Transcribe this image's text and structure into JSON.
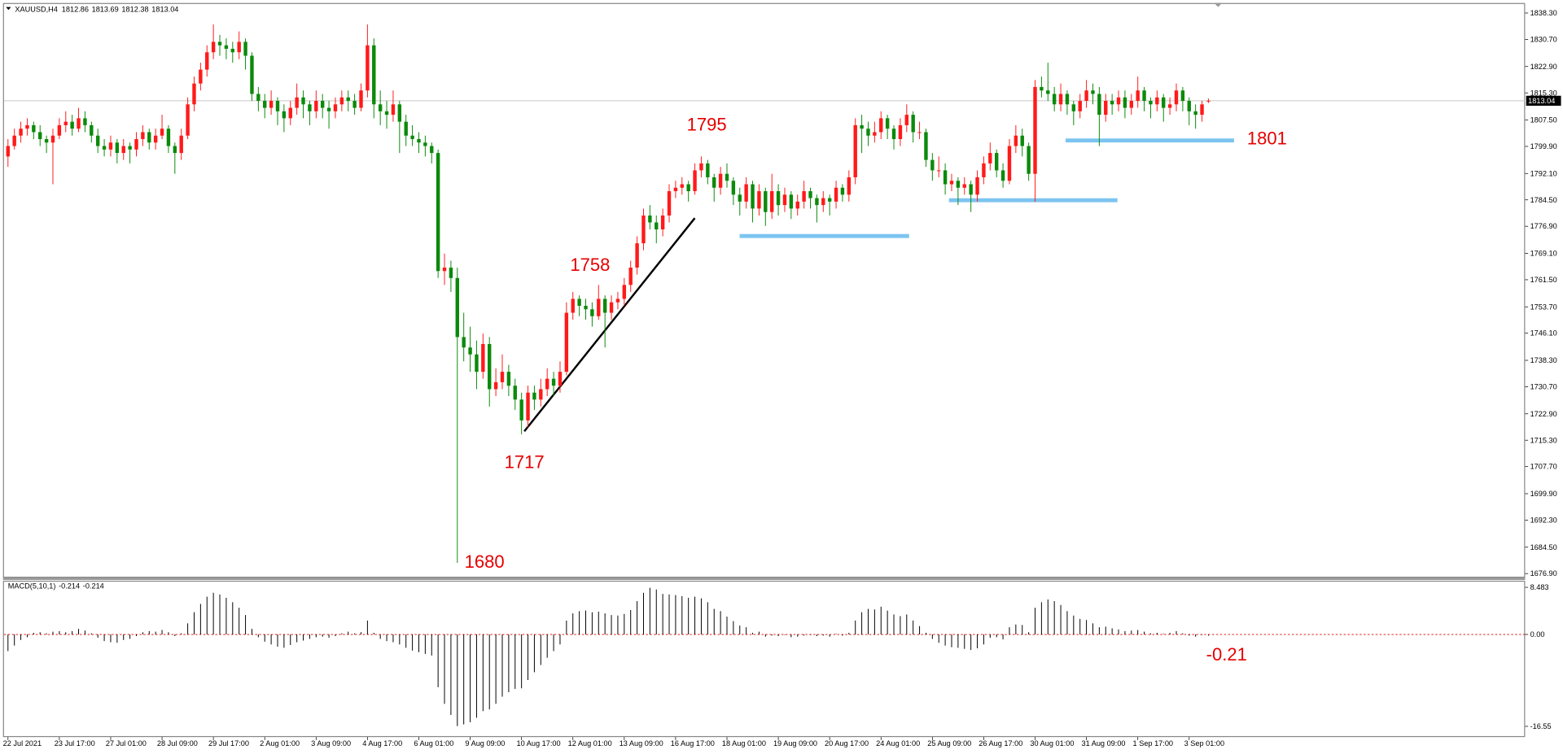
{
  "chart_data": {
    "type": "candlestick",
    "title": "XAUUSD,H4",
    "up_color": "#ff1a1a",
    "down_color": "#0b8a0b",
    "ylim": [
      1676.0,
      1840.9
    ],
    "yticks": [
      {
        "value": 1838.3,
        "label": "1838.30"
      },
      {
        "value": 1830.7,
        "label": "1830.70"
      },
      {
        "value": 1822.9,
        "label": "1822.90"
      },
      {
        "value": 1815.3,
        "label": "1815.30"
      },
      {
        "value": 1807.5,
        "label": "1807.50"
      },
      {
        "value": 1799.9,
        "label": "1799.90"
      },
      {
        "value": 1792.1,
        "label": "1792.10"
      },
      {
        "value": 1784.5,
        "label": "1784.50"
      },
      {
        "value": 1776.9,
        "label": "1776.90"
      },
      {
        "value": 1769.1,
        "label": "1769.10"
      },
      {
        "value": 1761.5,
        "label": "1761.50"
      },
      {
        "value": 1753.7,
        "label": "1753.70"
      },
      {
        "value": 1746.1,
        "label": "1746.10"
      },
      {
        "value": 1738.3,
        "label": "1738.30"
      },
      {
        "value": 1730.7,
        "label": "1730.70"
      },
      {
        "value": 1722.9,
        "label": "1722.90"
      },
      {
        "value": 1715.3,
        "label": "1715.30"
      },
      {
        "value": 1707.7,
        "label": "1707.70"
      },
      {
        "value": 1699.9,
        "label": "1699.90"
      },
      {
        "value": 1692.3,
        "label": "1692.30"
      },
      {
        "value": 1684.5,
        "label": "1684.50"
      },
      {
        "value": 1676.9,
        "label": "1676.90"
      }
    ],
    "time_labels": [
      "22 Jul 2021",
      "23 Jul 17:00",
      "27 Jul 01:00",
      "28 Jul 09:00",
      "29 Jul 17:00",
      "2 Aug 01:00",
      "3 Aug 09:00",
      "4 Aug 17:00",
      "6 Aug 01:00",
      "9 Aug 09:00",
      "10 Aug 17:00",
      "12 Aug 01:00",
      "13 Aug 09:00",
      "16 Aug 17:00",
      "18 Aug 01:00",
      "19 Aug 09:00",
      "20 Aug 17:00",
      "24 Aug 01:00",
      "25 Aug 09:00",
      "26 Aug 17:00",
      "30 Aug 01:00",
      "31 Aug 09:00",
      "1 Sep 17:00",
      "3 Sep 01:00"
    ],
    "annotations": [
      1795,
      1758,
      1717,
      1680,
      1801,
      -0.21
    ],
    "candles": [
      [
        1797,
        1802,
        1794,
        1800
      ],
      [
        1800,
        1805,
        1799,
        1803
      ],
      [
        1803,
        1807,
        1801,
        1805
      ],
      [
        1805,
        1808,
        1803,
        1806
      ],
      [
        1806,
        1807,
        1802,
        1804
      ],
      [
        1804,
        1806,
        1800,
        1802
      ],
      [
        1802,
        1803,
        1798,
        1801
      ],
      [
        1801,
        1805,
        1789,
        1803
      ],
      [
        1803,
        1808,
        1802,
        1806
      ],
      [
        1806,
        1810,
        1804,
        1807
      ],
      [
        1807,
        1809,
        1803,
        1805
      ],
      [
        1805,
        1811,
        1804,
        1808
      ],
      [
        1808,
        1810,
        1804,
        1806
      ],
      [
        1806,
        1807,
        1801,
        1803
      ],
      [
        1803,
        1805,
        1798,
        1800
      ],
      [
        1800,
        1802,
        1797,
        1799
      ],
      [
        1799,
        1803,
        1797,
        1801
      ],
      [
        1801,
        1802,
        1795,
        1798
      ],
      [
        1798,
        1802,
        1796,
        1800
      ],
      [
        1800,
        1801,
        1795,
        1799
      ],
      [
        1799,
        1804,
        1797,
        1802
      ],
      [
        1802,
        1806,
        1800,
        1804
      ],
      [
        1804,
        1805,
        1799,
        1801
      ],
      [
        1801,
        1805,
        1799,
        1803
      ],
      [
        1803,
        1809,
        1802,
        1805
      ],
      [
        1805,
        1806,
        1798,
        1800
      ],
      [
        1800,
        1801,
        1792,
        1798
      ],
      [
        1798,
        1805,
        1796,
        1803
      ],
      [
        1803,
        1814,
        1802,
        1812
      ],
      [
        1812,
        1820,
        1810,
        1818
      ],
      [
        1818,
        1824,
        1816,
        1822
      ],
      [
        1822,
        1829,
        1820,
        1827
      ],
      [
        1827,
        1835,
        1825,
        1830
      ],
      [
        1830,
        1832,
        1826,
        1829
      ],
      [
        1829,
        1831,
        1825,
        1828
      ],
      [
        1828,
        1830,
        1824,
        1827
      ],
      [
        1827,
        1833,
        1825,
        1830
      ],
      [
        1830,
        1831,
        1822,
        1826
      ],
      [
        1826,
        1827,
        1813,
        1815
      ],
      [
        1815,
        1817,
        1810,
        1813
      ],
      [
        1813,
        1815,
        1808,
        1811
      ],
      [
        1811,
        1816,
        1809,
        1813
      ],
      [
        1813,
        1814,
        1806,
        1810
      ],
      [
        1810,
        1812,
        1804,
        1808
      ],
      [
        1808,
        1813,
        1806,
        1811
      ],
      [
        1811,
        1818,
        1809,
        1814
      ],
      [
        1814,
        1816,
        1808,
        1812
      ],
      [
        1812,
        1813,
        1806,
        1810
      ],
      [
        1810,
        1816,
        1808,
        1813
      ],
      [
        1813,
        1815,
        1808,
        1811
      ],
      [
        1811,
        1813,
        1805,
        1810
      ],
      [
        1810,
        1814,
        1808,
        1812
      ],
      [
        1812,
        1816,
        1810,
        1814
      ],
      [
        1814,
        1816,
        1810,
        1813
      ],
      [
        1813,
        1815,
        1809,
        1811
      ],
      [
        1811,
        1818,
        1810,
        1816
      ],
      [
        1816,
        1835,
        1814,
        1829
      ],
      [
        1829,
        1831,
        1808,
        1812
      ],
      [
        1812,
        1816,
        1806,
        1810
      ],
      [
        1810,
        1813,
        1805,
        1809
      ],
      [
        1809,
        1816,
        1807,
        1812
      ],
      [
        1812,
        1813,
        1798,
        1807
      ],
      [
        1807,
        1809,
        1800,
        1803
      ],
      [
        1803,
        1806,
        1800,
        1802
      ],
      [
        1802,
        1804,
        1798,
        1801
      ],
      [
        1801,
        1803,
        1797,
        1800
      ],
      [
        1800,
        1801,
        1795,
        1798
      ],
      [
        1798,
        1799,
        1762,
        1764
      ],
      [
        1764,
        1769,
        1760,
        1765
      ],
      [
        1765,
        1767,
        1758,
        1762
      ],
      [
        1762,
        1765,
        1680,
        1745
      ],
      [
        1745,
        1752,
        1738,
        1742
      ],
      [
        1742,
        1748,
        1735,
        1740
      ],
      [
        1740,
        1744,
        1730,
        1735
      ],
      [
        1735,
        1746,
        1733,
        1743
      ],
      [
        1743,
        1745,
        1725,
        1730
      ],
      [
        1730,
        1736,
        1728,
        1732
      ],
      [
        1732,
        1740,
        1730,
        1735
      ],
      [
        1735,
        1737,
        1728,
        1731
      ],
      [
        1731,
        1733,
        1724,
        1727
      ],
      [
        1727,
        1729,
        1717,
        1721
      ],
      [
        1721,
        1731,
        1719,
        1729
      ],
      [
        1729,
        1731,
        1724,
        1727
      ],
      [
        1727,
        1733,
        1725,
        1730
      ],
      [
        1730,
        1736,
        1728,
        1733
      ],
      [
        1733,
        1735,
        1728,
        1731
      ],
      [
        1731,
        1738,
        1729,
        1735
      ],
      [
        1735,
        1755,
        1734,
        1752
      ],
      [
        1752,
        1758,
        1750,
        1756
      ],
      [
        1756,
        1757,
        1751,
        1754
      ],
      [
        1754,
        1756,
        1750,
        1753
      ],
      [
        1753,
        1755,
        1748,
        1751
      ],
      [
        1751,
        1760,
        1750,
        1756
      ],
      [
        1756,
        1757,
        1742,
        1752
      ],
      [
        1752,
        1757,
        1750,
        1755
      ],
      [
        1755,
        1758,
        1753,
        1756
      ],
      [
        1756,
        1762,
        1754,
        1760
      ],
      [
        1760,
        1767,
        1758,
        1765
      ],
      [
        1765,
        1774,
        1763,
        1772
      ],
      [
        1772,
        1782,
        1770,
        1780
      ],
      [
        1780,
        1783,
        1776,
        1778
      ],
      [
        1778,
        1780,
        1772,
        1776
      ],
      [
        1776,
        1782,
        1774,
        1780
      ],
      [
        1780,
        1789,
        1778,
        1787
      ],
      [
        1787,
        1790,
        1785,
        1788
      ],
      [
        1788,
        1791,
        1786,
        1789
      ],
      [
        1789,
        1790,
        1784,
        1787
      ],
      [
        1787,
        1795,
        1786,
        1793
      ],
      [
        1793,
        1797,
        1791,
        1795
      ],
      [
        1795,
        1796,
        1789,
        1791
      ],
      [
        1791,
        1792,
        1784,
        1788
      ],
      [
        1788,
        1794,
        1786,
        1792
      ],
      [
        1792,
        1795,
        1788,
        1790
      ],
      [
        1790,
        1791,
        1783,
        1786
      ],
      [
        1786,
        1788,
        1780,
        1784
      ],
      [
        1784,
        1791,
        1782,
        1789
      ],
      [
        1789,
        1790,
        1778,
        1782
      ],
      [
        1782,
        1789,
        1780,
        1787
      ],
      [
        1787,
        1788,
        1777,
        1781
      ],
      [
        1781,
        1792,
        1779,
        1787
      ],
      [
        1787,
        1789,
        1780,
        1783
      ],
      [
        1783,
        1788,
        1781,
        1786
      ],
      [
        1786,
        1787,
        1779,
        1782
      ],
      [
        1782,
        1786,
        1780,
        1784
      ],
      [
        1784,
        1790,
        1782,
        1787
      ],
      [
        1787,
        1788,
        1782,
        1785
      ],
      [
        1785,
        1786,
        1778,
        1783
      ],
      [
        1783,
        1787,
        1781,
        1785
      ],
      [
        1785,
        1786,
        1780,
        1784
      ],
      [
        1784,
        1790,
        1782,
        1788
      ],
      [
        1788,
        1789,
        1784,
        1786
      ],
      [
        1786,
        1793,
        1784,
        1791
      ],
      [
        1791,
        1808,
        1789,
        1806
      ],
      [
        1806,
        1809,
        1798,
        1805
      ],
      [
        1805,
        1807,
        1800,
        1803
      ],
      [
        1803,
        1807,
        1801,
        1804
      ],
      [
        1804,
        1810,
        1802,
        1808
      ],
      [
        1808,
        1809,
        1802,
        1805
      ],
      [
        1805,
        1806,
        1799,
        1802
      ],
      [
        1802,
        1808,
        1800,
        1806
      ],
      [
        1806,
        1812,
        1804,
        1809
      ],
      [
        1809,
        1810,
        1801,
        1804
      ],
      [
        1804,
        1807,
        1802,
        1804
      ],
      [
        1804,
        1805,
        1794,
        1796
      ],
      [
        1796,
        1798,
        1790,
        1793
      ],
      [
        1793,
        1797,
        1791,
        1793
      ],
      [
        1793,
        1795,
        1786,
        1789
      ],
      [
        1789,
        1792,
        1787,
        1790
      ],
      [
        1790,
        1791,
        1783,
        1788
      ],
      [
        1788,
        1791,
        1786,
        1789
      ],
      [
        1789,
        1790,
        1781,
        1786
      ],
      [
        1786,
        1793,
        1784,
        1791
      ],
      [
        1791,
        1797,
        1789,
        1795
      ],
      [
        1795,
        1801,
        1793,
        1798
      ],
      [
        1798,
        1799,
        1791,
        1793
      ],
      [
        1793,
        1795,
        1788,
        1790
      ],
      [
        1790,
        1802,
        1789,
        1800
      ],
      [
        1800,
        1806,
        1798,
        1803
      ],
      [
        1803,
        1805,
        1797,
        1800
      ],
      [
        1800,
        1801,
        1790,
        1792
      ],
      [
        1792,
        1819,
        1784,
        1817
      ],
      [
        1817,
        1820,
        1814,
        1816
      ],
      [
        1816,
        1824,
        1813,
        1815
      ],
      [
        1815,
        1817,
        1810,
        1812
      ],
      [
        1812,
        1818,
        1810,
        1815
      ],
      [
        1815,
        1816,
        1809,
        1812
      ],
      [
        1812,
        1813,
        1806,
        1810
      ],
      [
        1810,
        1815,
        1808,
        1813
      ],
      [
        1813,
        1819,
        1811,
        1816
      ],
      [
        1816,
        1818,
        1812,
        1815
      ],
      [
        1815,
        1817,
        1800,
        1809
      ],
      [
        1809,
        1815,
        1807,
        1813
      ],
      [
        1813,
        1815,
        1809,
        1812
      ],
      [
        1812,
        1816,
        1810,
        1814
      ],
      [
        1814,
        1816,
        1808,
        1811
      ],
      [
        1811,
        1815,
        1809,
        1813
      ],
      [
        1813,
        1820,
        1811,
        1816
      ],
      [
        1816,
        1817,
        1810,
        1813
      ],
      [
        1813,
        1814,
        1808,
        1812
      ],
      [
        1812,
        1816,
        1810,
        1814
      ],
      [
        1814,
        1815,
        1807,
        1811
      ],
      [
        1811,
        1814,
        1809,
        1812
      ],
      [
        1812,
        1818,
        1810,
        1816
      ],
      [
        1816,
        1817,
        1810,
        1813
      ],
      [
        1813,
        1814,
        1806,
        1810
      ],
      [
        1810,
        1812,
        1805,
        1809
      ],
      [
        1809,
        1813,
        1807,
        1812
      ],
      [
        1812.86,
        1813.69,
        1812.38,
        1813.04
      ]
    ],
    "macd": {
      "name": "MACD(5,10,1)",
      "signal": -0.214,
      "color": "#000000",
      "zero_color": "#e00000",
      "ylim": [
        -18.3,
        9.5
      ],
      "yticks": [
        8.483,
        {
          "value": 0,
          "label": "0.00"
        },
        -16.55
      ],
      "values": [
        -3,
        -2,
        -1,
        -0.5,
        0.3,
        0.4,
        0.2,
        0.5,
        0.6,
        0.4,
        0.6,
        1,
        0.7,
        0.2,
        -0.6,
        -1.2,
        -1.4,
        -1.5,
        -1,
        -0.8,
        -0.3,
        0.4,
        0.6,
        0.5,
        0.8,
        0.4,
        -0.3,
        0.2,
        2,
        4,
        5.5,
        6.8,
        7.5,
        7.2,
        6.6,
        5.8,
        4.8,
        3.5,
        1,
        -0.5,
        -1.3,
        -1.8,
        -2.2,
        -2.4,
        -1.9,
        -1.4,
        -1.1,
        -0.8,
        -0.5,
        -0.4,
        -0.6,
        -0.3,
        0.2,
        0.5,
        0.2,
        0.4,
        2.5,
        0.3,
        -0.8,
        -1.2,
        -1.4,
        -1.8,
        -2.4,
        -2.9,
        -3.2,
        -3.5,
        -3.8,
        -9.5,
        -12.5,
        -14.5,
        -16.5,
        -16.2,
        -15.8,
        -15,
        -13.8,
        -13.5,
        -12.5,
        -11.2,
        -10.4,
        -9.8,
        -9.7,
        -8.2,
        -6.8,
        -5.5,
        -4.2,
        -3,
        -1.8,
        2.5,
        3.8,
        4.2,
        4.3,
        4,
        4.1,
        3.8,
        3.5,
        3.4,
        3.7,
        4.4,
        6,
        7.5,
        8.4,
        8.1,
        7.3,
        7.2,
        7.1,
        6.9,
        6.6,
        6.8,
        6.5,
        5.8,
        4.6,
        4.2,
        3.2,
        2.4,
        1.6,
        1.3,
        0.3,
        0.5,
        -0.4,
        -0.2,
        -0.3,
        -0.1,
        -0.5,
        -0.4,
        -0.2,
        -0.1,
        -0.3,
        -0.2,
        -0.4,
        0.1,
        -0.2,
        0.3,
        2.5,
        4,
        4.6,
        4.5,
        5,
        4.3,
        3.6,
        3.3,
        3.6,
        2.5,
        1.5,
        0.3,
        -0.8,
        -1.5,
        -2,
        -2.3,
        -2.4,
        -2.6,
        -2.8,
        -2.5,
        -1.8,
        -0.6,
        -0.5,
        -0.9,
        1.3,
        1.8,
        1.7,
        0.4,
        4.8,
        5.8,
        6.3,
        6,
        5.3,
        4.2,
        3.4,
        2.8,
        2.6,
        2,
        1.3,
        1.4,
        1.1,
        0.9,
        0.6,
        0.7,
        0.8,
        0.5,
        0.2,
        0.3,
        0.1,
        0.3,
        0.6,
        0.2,
        -0.2,
        -0.4,
        -0.1,
        -0.214
      ]
    }
  }
}
